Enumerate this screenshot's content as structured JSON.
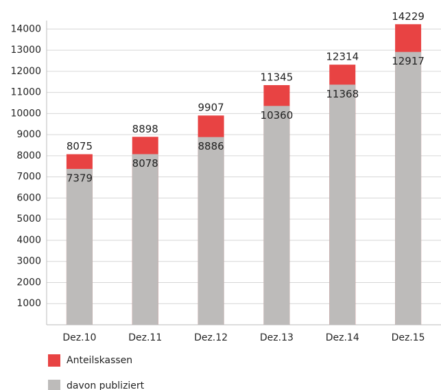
{
  "chart_data": {
    "type": "bar",
    "categories": [
      "Dez.10",
      "Dez.11",
      "Dez.12",
      "Dez.13",
      "Dez.14",
      "Dez.15"
    ],
    "series": [
      {
        "name": "Anteilskassen",
        "color": "#e84343",
        "values": [
          8075,
          8898,
          9907,
          11345,
          12314,
          14229
        ]
      },
      {
        "name": "davon publiziert",
        "color": "#bdbbba",
        "values": [
          7379,
          8078,
          8886,
          10360,
          11368,
          12917
        ]
      }
    ],
    "ylim": [
      0,
      14400
    ],
    "yticks": [
      1000,
      2000,
      3000,
      4000,
      5000,
      6000,
      7000,
      8000,
      9000,
      10000,
      11000,
      12000,
      13000,
      14000
    ],
    "grid": true
  }
}
